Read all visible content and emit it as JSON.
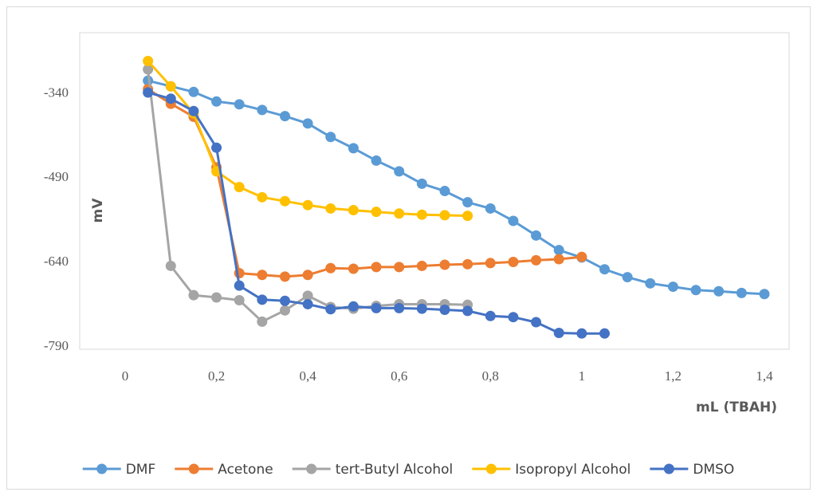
{
  "chart_data": {
    "type": "line",
    "title": "",
    "xlabel": "mL (TBAH)",
    "ylabel": "mV",
    "xlim": [
      0,
      1.4
    ],
    "ylim": [
      -790,
      -290
    ],
    "x_ticks": [
      {
        "value": 0,
        "label": "0"
      },
      {
        "value": 0.2,
        "label": "0,2"
      },
      {
        "value": 0.4,
        "label": "0,4"
      },
      {
        "value": 0.6,
        "label": "0,6"
      },
      {
        "value": 0.8,
        "label": "0,8"
      },
      {
        "value": 1.0,
        "label": "1"
      },
      {
        "value": 1.2,
        "label": "1,2"
      },
      {
        "value": 1.4,
        "label": "1,4"
      }
    ],
    "y_ticks": [
      {
        "value": -340,
        "label": "-340"
      },
      {
        "value": -490,
        "label": "-490"
      },
      {
        "value": -640,
        "label": "-640"
      },
      {
        "value": -790,
        "label": "-790"
      }
    ],
    "grid": false,
    "legend_position": "bottom",
    "series": [
      {
        "name": "DMF",
        "color": "#5B9BD5",
        "points": [
          [
            0.05,
            -320
          ],
          [
            0.1,
            -330
          ],
          [
            0.15,
            -340
          ],
          [
            0.2,
            -357
          ],
          [
            0.25,
            -362
          ],
          [
            0.3,
            -372
          ],
          [
            0.35,
            -383
          ],
          [
            0.4,
            -396
          ],
          [
            0.45,
            -420
          ],
          [
            0.5,
            -440
          ],
          [
            0.55,
            -462
          ],
          [
            0.6,
            -481
          ],
          [
            0.65,
            -503
          ],
          [
            0.7,
            -516
          ],
          [
            0.75,
            -536
          ],
          [
            0.8,
            -547
          ],
          [
            0.85,
            -569
          ],
          [
            0.9,
            -595
          ],
          [
            0.95,
            -621
          ],
          [
            1.0,
            -634
          ],
          [
            1.05,
            -655
          ],
          [
            1.1,
            -669
          ],
          [
            1.15,
            -680
          ],
          [
            1.2,
            -686
          ],
          [
            1.25,
            -692
          ],
          [
            1.3,
            -694
          ],
          [
            1.35,
            -697
          ],
          [
            1.4,
            -699
          ]
        ]
      },
      {
        "name": "Acetone",
        "color": "#ED7D31",
        "points": [
          [
            0.05,
            -335
          ],
          [
            0.1,
            -361
          ],
          [
            0.15,
            -384
          ],
          [
            0.2,
            -474
          ],
          [
            0.25,
            -662
          ],
          [
            0.3,
            -665
          ],
          [
            0.35,
            -668
          ],
          [
            0.4,
            -665
          ],
          [
            0.45,
            -653
          ],
          [
            0.5,
            -654
          ],
          [
            0.55,
            -651
          ],
          [
            0.6,
            -651
          ],
          [
            0.65,
            -649
          ],
          [
            0.7,
            -647
          ],
          [
            0.75,
            -646
          ],
          [
            0.8,
            -644
          ],
          [
            0.85,
            -642
          ],
          [
            0.9,
            -639
          ],
          [
            0.95,
            -637
          ],
          [
            1.0,
            -633
          ]
        ]
      },
      {
        "name": "tert-Butyl Alcohol",
        "color": "#A5A5A5",
        "points": [
          [
            0.05,
            -300
          ],
          [
            0.1,
            -649
          ],
          [
            0.15,
            -701
          ],
          [
            0.2,
            -705
          ],
          [
            0.25,
            -710
          ],
          [
            0.3,
            -748
          ],
          [
            0.35,
            -728
          ],
          [
            0.4,
            -702
          ],
          [
            0.45,
            -722
          ],
          [
            0.5,
            -725
          ],
          [
            0.55,
            -720
          ],
          [
            0.6,
            -717
          ],
          [
            0.65,
            -717
          ],
          [
            0.7,
            -717
          ],
          [
            0.75,
            -718
          ]
        ]
      },
      {
        "name": "Isopropyl Alcohol",
        "color": "#FFC000",
        "points": [
          [
            0.05,
            -285
          ],
          [
            0.1,
            -330
          ],
          [
            0.15,
            -378
          ],
          [
            0.2,
            -481
          ],
          [
            0.25,
            -509
          ],
          [
            0.3,
            -527
          ],
          [
            0.35,
            -534
          ],
          [
            0.4,
            -541
          ],
          [
            0.45,
            -547
          ],
          [
            0.5,
            -550
          ],
          [
            0.55,
            -553
          ],
          [
            0.6,
            -556
          ],
          [
            0.65,
            -558
          ],
          [
            0.7,
            -559
          ],
          [
            0.75,
            -560
          ]
        ]
      },
      {
        "name": "DMSO",
        "color": "#4472C4",
        "points": [
          [
            0.05,
            -341
          ],
          [
            0.1,
            -352
          ],
          [
            0.15,
            -374
          ],
          [
            0.2,
            -439
          ],
          [
            0.25,
            -684
          ],
          [
            0.3,
            -709
          ],
          [
            0.35,
            -711
          ],
          [
            0.4,
            -717
          ],
          [
            0.45,
            -726
          ],
          [
            0.5,
            -721
          ],
          [
            0.55,
            -724
          ],
          [
            0.6,
            -724
          ],
          [
            0.65,
            -725
          ],
          [
            0.7,
            -727
          ],
          [
            0.75,
            -729
          ],
          [
            0.8,
            -738
          ],
          [
            0.85,
            -740
          ],
          [
            0.9,
            -749
          ],
          [
            0.95,
            -768
          ],
          [
            1.0,
            -769
          ],
          [
            1.05,
            -769
          ]
        ]
      }
    ]
  }
}
